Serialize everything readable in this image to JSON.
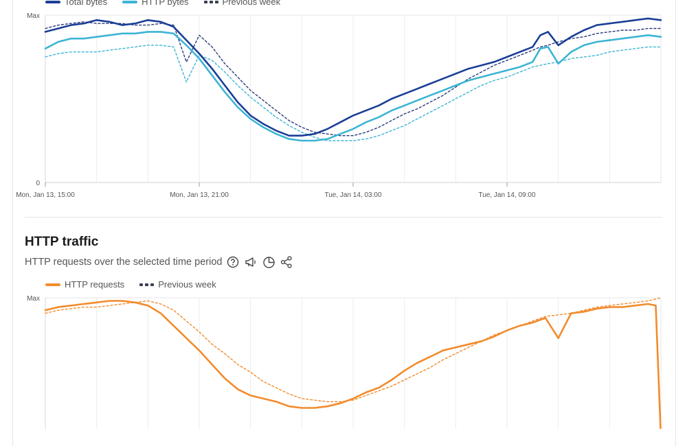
{
  "chart_data": [
    {
      "type": "line",
      "legend": {
        "position": "top-left"
      },
      "y_tick_labels": [
        "Max",
        "0"
      ],
      "ylim": [
        0,
        100
      ],
      "x_tick_labels": [
        "Mon, Jan 13, 15:00",
        "Mon, Jan 13, 21:00",
        "Tue, Jan 14, 03:00",
        "Tue, Jan 14, 09:00"
      ],
      "xlim": [
        0,
        24
      ],
      "x_ticks": [
        0,
        6,
        12,
        18
      ],
      "grid": true,
      "series": [
        {
          "name": "Total bytes",
          "style": "solid",
          "color": "#1a3e96",
          "x": [
            0,
            0.5,
            1,
            1.5,
            2,
            2.5,
            3,
            3.5,
            4,
            4.5,
            5,
            5.5,
            6,
            6.5,
            7,
            7.5,
            8,
            8.5,
            9,
            9.5,
            10,
            10.5,
            11,
            11.5,
            12,
            12.5,
            13,
            13.5,
            14,
            14.5,
            15,
            15.5,
            16,
            16.5,
            17,
            17.5,
            18,
            18.5,
            19,
            19.3,
            19.6,
            20,
            20.5,
            21,
            21.5,
            22,
            22.5,
            23,
            23.5,
            24
          ],
          "y": [
            90,
            92,
            94,
            95,
            97,
            96,
            94,
            95,
            97,
            96,
            93,
            85,
            77,
            68,
            58,
            48,
            40,
            35,
            31,
            28,
            28,
            29,
            32,
            36,
            40,
            43,
            46,
            50,
            53,
            56,
            59,
            62,
            65,
            68,
            70,
            72,
            75,
            78,
            81,
            88,
            90,
            82,
            87,
            91,
            94,
            95,
            96,
            97,
            98,
            97
          ]
        },
        {
          "name": "HTTP bytes",
          "style": "solid",
          "color": "#3cb4d4",
          "x": [
            0,
            0.5,
            1,
            1.5,
            2,
            2.5,
            3,
            3.5,
            4,
            4.5,
            5,
            5.5,
            6,
            6.5,
            7,
            7.5,
            8,
            8.5,
            9,
            9.5,
            10,
            10.5,
            11,
            11.5,
            12,
            12.5,
            13,
            13.5,
            14,
            14.5,
            15,
            15.5,
            16,
            16.5,
            17,
            17.5,
            18,
            18.5,
            19,
            19.3,
            19.6,
            20,
            20.5,
            21,
            21.5,
            22,
            22.5,
            23,
            23.5,
            24
          ],
          "y": [
            80,
            84,
            86,
            86,
            87,
            88,
            89,
            89,
            90,
            90,
            89,
            82,
            74,
            64,
            54,
            45,
            38,
            33,
            29,
            26,
            25,
            25,
            26,
            29,
            32,
            36,
            39,
            43,
            46,
            49,
            52,
            55,
            58,
            61,
            63,
            65,
            67,
            69,
            72,
            80,
            81,
            71,
            78,
            82,
            84,
            85,
            86,
            87,
            88,
            87
          ]
        },
        {
          "name": "Previous week",
          "style": "dashed",
          "color": "#2a3a7a",
          "x": [
            0,
            0.5,
            1,
            1.5,
            2,
            2.5,
            3,
            3.5,
            4,
            4.5,
            5,
            5.5,
            6,
            6.5,
            7,
            7.5,
            8,
            8.5,
            9,
            9.5,
            10,
            10.5,
            11,
            11.5,
            12,
            12.5,
            13,
            13.5,
            14,
            14.5,
            15,
            15.5,
            16,
            16.5,
            17,
            17.5,
            18,
            18.5,
            19,
            19.3,
            19.6,
            20,
            20.5,
            21,
            21.5,
            22,
            22.5,
            23,
            23.5,
            24
          ],
          "y": [
            92,
            94,
            95,
            96,
            95,
            95,
            95,
            94,
            94,
            95,
            94,
            72,
            88,
            81,
            71,
            63,
            55,
            49,
            43,
            37,
            33,
            30,
            29,
            28,
            28,
            30,
            33,
            37,
            41,
            44,
            48,
            52,
            57,
            62,
            66,
            70,
            73,
            76,
            79,
            81,
            82,
            84,
            86,
            87,
            89,
            90,
            91,
            91,
            92,
            92
          ]
        },
        {
          "name": "",
          "style": "dashed",
          "color": "#3cb4d4",
          "x": [
            0,
            0.5,
            1,
            1.5,
            2,
            2.5,
            3,
            3.5,
            4,
            4.5,
            5,
            5.5,
            6,
            6.5,
            7,
            7.5,
            8,
            8.5,
            9,
            9.5,
            10,
            10.5,
            11,
            11.5,
            12,
            12.5,
            13,
            13.5,
            14,
            14.5,
            15,
            15.5,
            16,
            16.5,
            17,
            17.5,
            18,
            18.5,
            19,
            19.3,
            19.6,
            20,
            20.5,
            21,
            21.5,
            22,
            22.5,
            23,
            23.5,
            24
          ],
          "y": [
            75,
            77,
            78,
            78,
            78,
            79,
            80,
            81,
            82,
            82,
            81,
            60,
            76,
            73,
            66,
            58,
            51,
            45,
            39,
            34,
            30,
            27,
            25,
            25,
            25,
            26,
            28,
            31,
            34,
            38,
            42,
            46,
            50,
            54,
            58,
            61,
            63,
            66,
            69,
            70,
            71,
            72,
            74,
            75,
            76,
            78,
            79,
            80,
            81,
            81
          ]
        }
      ]
    },
    {
      "type": "line",
      "legend": {
        "position": "top-left"
      },
      "y_tick_labels": [
        "Max"
      ],
      "ylim": [
        0,
        100
      ],
      "xlim": [
        0,
        24
      ],
      "x_ticks": [
        0,
        6,
        12,
        18
      ],
      "grid": true,
      "series": [
        {
          "name": "HTTP requests",
          "style": "solid",
          "color": "#f28b2c",
          "x": [
            0,
            0.5,
            1,
            1.5,
            2,
            2.5,
            3,
            3.5,
            4,
            4.5,
            5,
            5.5,
            6,
            6.5,
            7,
            7.5,
            8,
            8.5,
            9,
            9.5,
            10,
            10.5,
            11,
            11.5,
            12,
            12.5,
            13,
            13.5,
            14,
            14.5,
            15,
            15.5,
            16,
            16.5,
            17,
            17.5,
            18,
            18.5,
            19,
            19.5,
            20,
            20.5,
            21,
            21.5,
            22,
            22.5,
            23,
            23.5,
            23.8,
            24
          ],
          "y": [
            92,
            94,
            95,
            96,
            97,
            98,
            98,
            97,
            95,
            90,
            82,
            74,
            66,
            57,
            48,
            41,
            37,
            35,
            33,
            30,
            29,
            29,
            30,
            32,
            35,
            39,
            42,
            47,
            53,
            58,
            62,
            66,
            68,
            70,
            72,
            75,
            79,
            82,
            84,
            87,
            74,
            90,
            91,
            93,
            94,
            94,
            95,
            96,
            95,
            10
          ]
        },
        {
          "name": "Previous week",
          "style": "dashed",
          "color": "#f28b2c",
          "x": [
            0,
            0.5,
            1,
            1.5,
            2,
            2.5,
            3,
            3.5,
            4,
            4.5,
            5,
            5.5,
            6,
            6.5,
            7,
            7.5,
            8,
            8.5,
            9,
            9.5,
            10,
            10.5,
            11,
            11.5,
            12,
            12.5,
            13,
            13.5,
            14,
            14.5,
            15,
            15.5,
            16,
            16.5,
            17,
            17.5,
            18,
            18.5,
            19,
            19.5,
            20,
            20.5,
            21,
            21.5,
            22,
            22.5,
            23,
            23.5,
            24
          ],
          "y": [
            90,
            92,
            93,
            94,
            94,
            95,
            96,
            97,
            98,
            96,
            92,
            85,
            78,
            70,
            64,
            57,
            52,
            46,
            42,
            38,
            35,
            34,
            33,
            33,
            34,
            37,
            40,
            43,
            47,
            51,
            55,
            60,
            64,
            68,
            72,
            76,
            79,
            82,
            85,
            88,
            89,
            90,
            92,
            94,
            95,
            96,
            97,
            98,
            100
          ]
        }
      ]
    }
  ],
  "section": {
    "title": "HTTP traffic",
    "subtitle": "HTTP requests over the selected time period",
    "icons": [
      "help-icon",
      "megaphone-icon",
      "pie-chart-icon",
      "share-icon"
    ]
  }
}
